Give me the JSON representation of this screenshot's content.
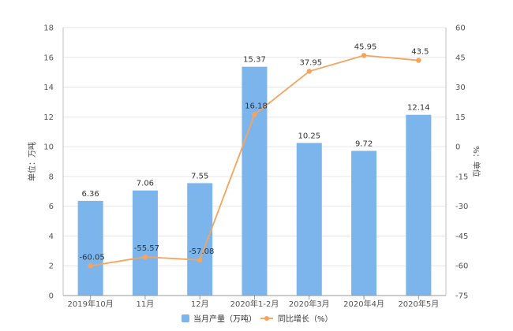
{
  "chart_data": {
    "type": "bar",
    "categories": [
      "2019年10月",
      "11月",
      "12月",
      "2020年1-2月",
      "2020年3月",
      "2020年4月",
      "2020年5月"
    ],
    "series": [
      {
        "name": "当月产量（万吨）",
        "type": "bar",
        "axis": "left",
        "values": [
          6.36,
          7.06,
          7.55,
          15.37,
          10.25,
          9.72,
          12.14
        ],
        "labels": [
          "6.36",
          "7.06",
          "7.55",
          "15.37",
          "10.25",
          "9.72",
          "12.14"
        ]
      },
      {
        "name": "同比增长（%）",
        "type": "line",
        "axis": "right",
        "values": [
          -60.05,
          -55.57,
          -57.08,
          16.18,
          37.95,
          45.95,
          43.5
        ],
        "labels": [
          "-60.05",
          "-55.57",
          "-57.08",
          "16.18",
          "37.95",
          "45.95",
          "43.5"
        ]
      }
    ],
    "ylabel": "单位：万吨",
    "y2label": "%：单位",
    "ylim": [
      0,
      18
    ],
    "y2lim": [
      -75,
      60
    ],
    "yticks": [
      "0",
      "2",
      "4",
      "6",
      "8",
      "10",
      "12",
      "14",
      "16",
      "18"
    ],
    "y2ticks": [
      "-75",
      "-60",
      "-45",
      "-30",
      "-15",
      "0",
      "15",
      "30",
      "45",
      "60"
    ],
    "grid": true,
    "legend_position": "bottom",
    "colors": {
      "bar": "#7cb5ec",
      "line": "#f7a35c",
      "grid": "#e6e6e6",
      "axis": "#c0c0c0",
      "watermark": "#eef1f5"
    }
  }
}
